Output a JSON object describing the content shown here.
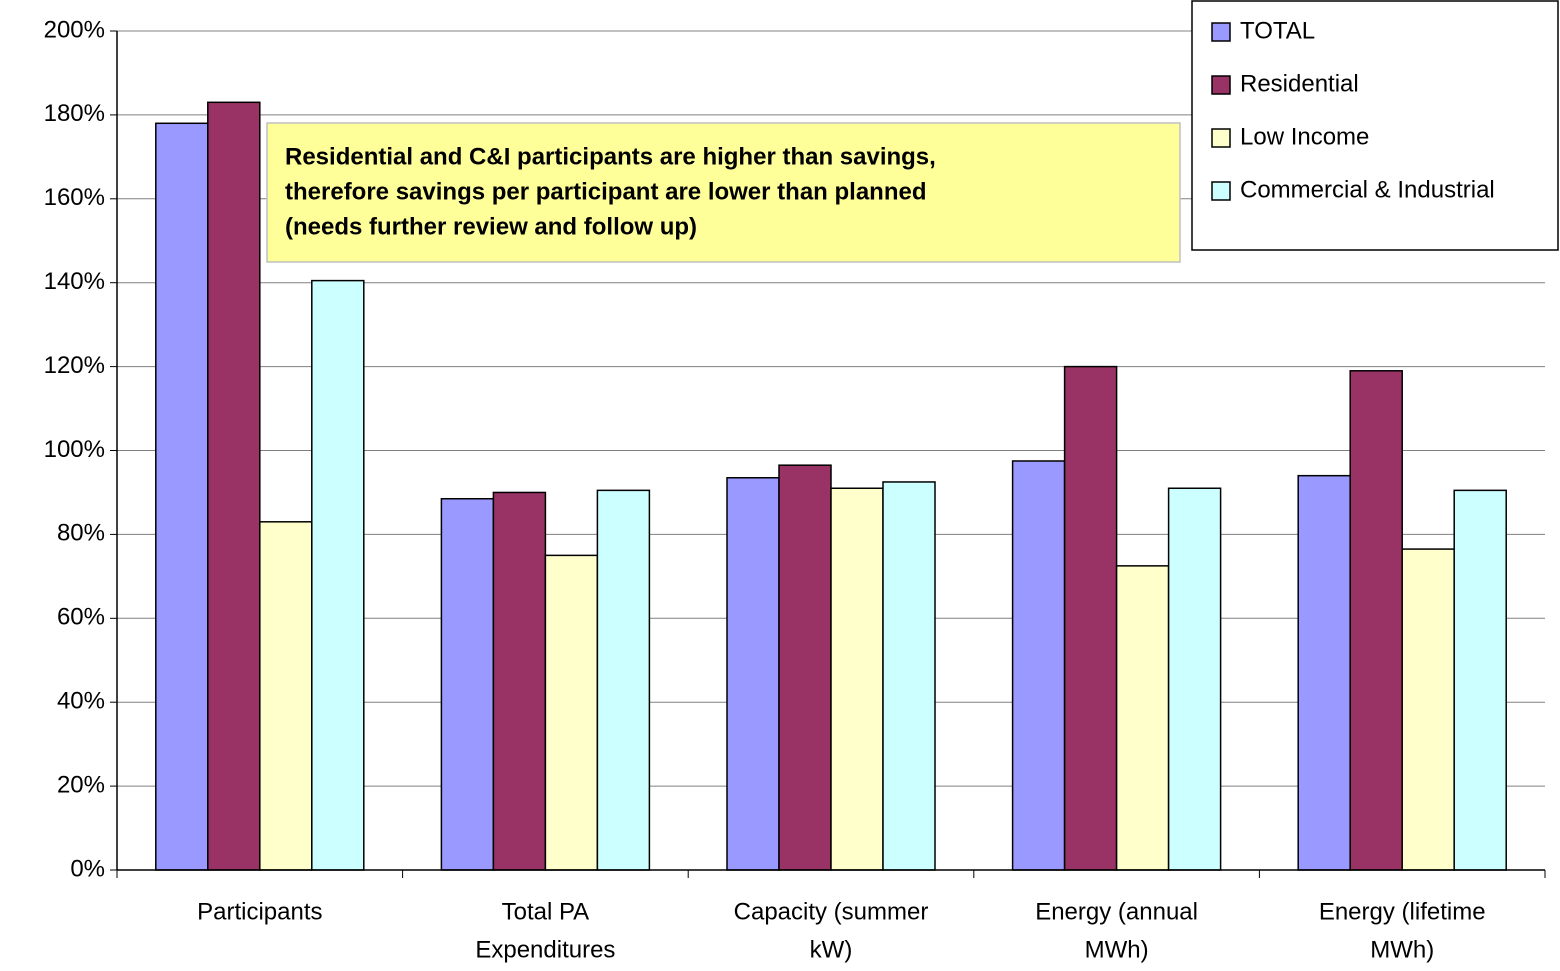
{
  "chart_data": {
    "type": "bar",
    "categories": [
      [
        "Participants"
      ],
      [
        "Total PA",
        "Expenditures"
      ],
      [
        "Capacity (summer",
        "kW)"
      ],
      [
        "Energy (annual",
        "MWh)"
      ],
      [
        "Energy (lifetime",
        "MWh)"
      ]
    ],
    "series": [
      {
        "name": "TOTAL",
        "color": "#9999ff",
        "values": [
          178,
          88.5,
          93.5,
          97.5,
          94
        ]
      },
      {
        "name": "Residential",
        "color": "#993366",
        "values": [
          183,
          90,
          96.5,
          120,
          119
        ]
      },
      {
        "name": "Low Income",
        "color": "#ffffcc",
        "values": [
          83,
          75,
          91,
          72.5,
          76.5
        ]
      },
      {
        "name": "Commercial & Industrial",
        "color": "#ccffff",
        "values": [
          140.5,
          90.5,
          92.5,
          91,
          90.5
        ]
      }
    ],
    "ylim": [
      0,
      200
    ],
    "yticks": [
      {
        "value": 0,
        "label": "0%"
      },
      {
        "value": 20,
        "label": "20%"
      },
      {
        "value": 40,
        "label": "40%"
      },
      {
        "value": 60,
        "label": "60%"
      },
      {
        "value": 80,
        "label": "80%"
      },
      {
        "value": 100,
        "label": "100%"
      },
      {
        "value": 120,
        "label": "120%"
      },
      {
        "value": 140,
        "label": "140%"
      },
      {
        "value": 160,
        "label": "160%"
      },
      {
        "value": 180,
        "label": "180%"
      },
      {
        "value": 200,
        "label": "200%"
      }
    ],
    "grid": true,
    "legend": "upper right",
    "annotation": [
      "Residential and C&I participants are higher than savings,",
      "therefore savings per participant are lower than planned",
      "(needs further review and follow up)"
    ]
  }
}
